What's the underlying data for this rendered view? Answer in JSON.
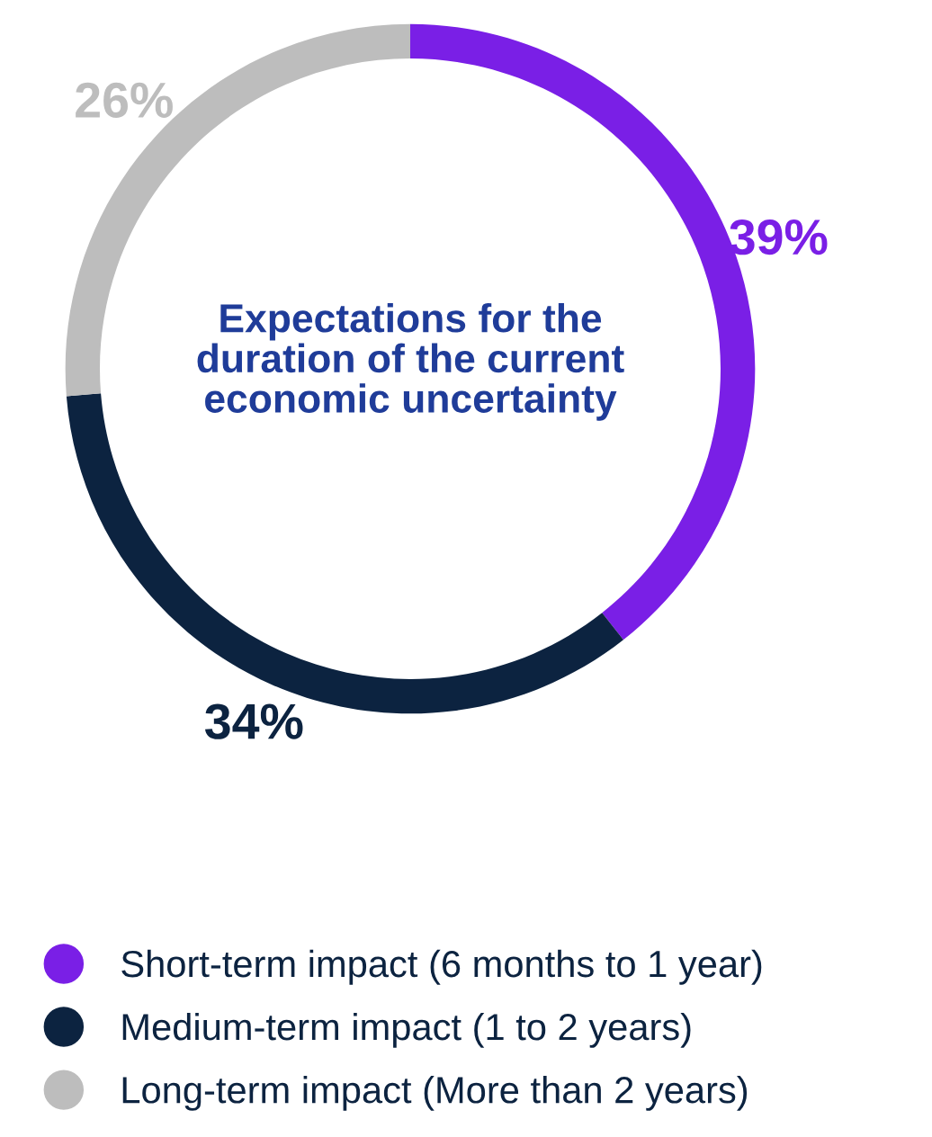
{
  "chart_data": {
    "type": "donut",
    "title": "Expectations for the duration of the current economic uncertainty",
    "categories": [
      "Short-term impact (6 months to 1 year)",
      "Medium-term impact (1 to 2 years)",
      "Long-term impact (More than 2 years)"
    ],
    "values": [
      39,
      34,
      26
    ],
    "value_labels": [
      "39%",
      "34%",
      "26%"
    ],
    "colors": [
      "#7a1fe6",
      "#0c2340",
      "#bdbdbd"
    ],
    "legend": "bottom"
  }
}
